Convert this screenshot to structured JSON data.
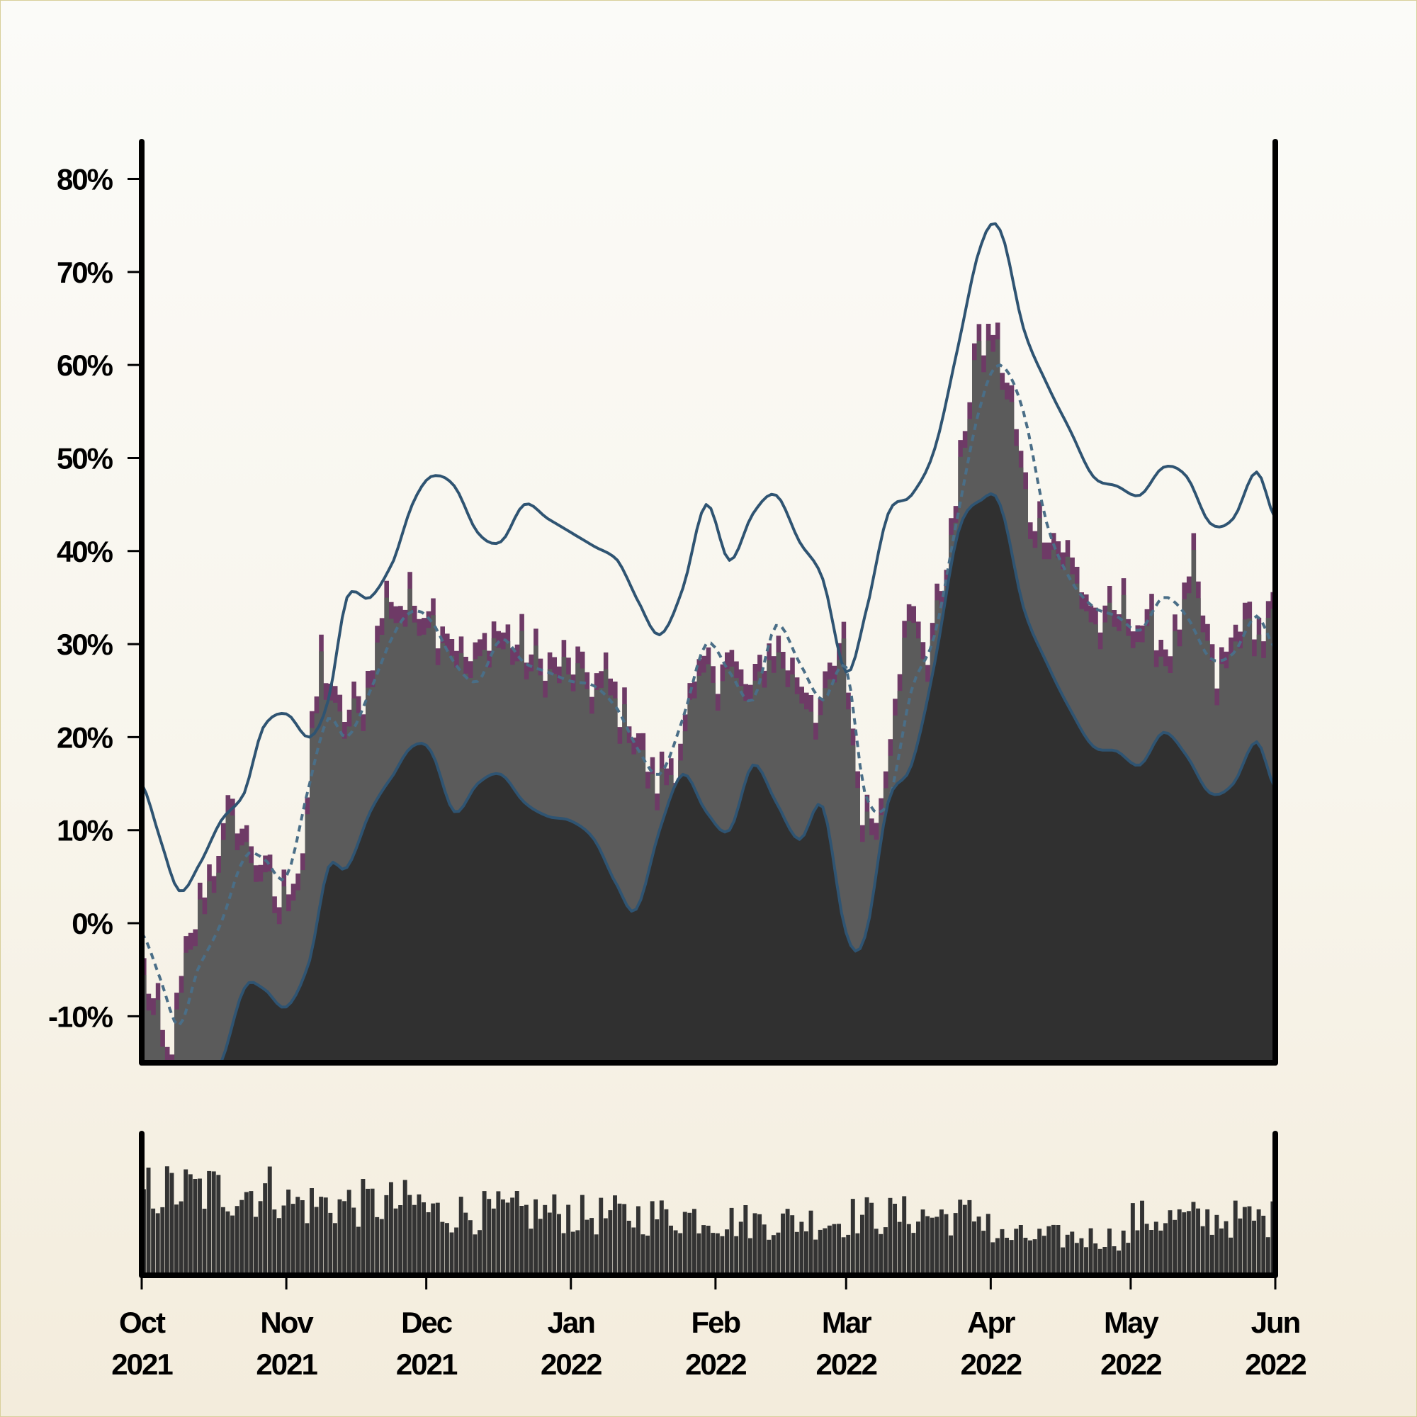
{
  "chart_data": {
    "type": "area",
    "x_tick_labels": [
      [
        "Oct",
        "2021"
      ],
      [
        "Nov",
        "2021"
      ],
      [
        "Dec",
        "2021"
      ],
      [
        "Jan",
        "2022"
      ],
      [
        "Feb",
        "2022"
      ],
      [
        "Mar",
        "2022"
      ],
      [
        "Apr",
        "2022"
      ],
      [
        "May",
        "2022"
      ],
      [
        "Jun",
        "2022"
      ]
    ],
    "x_ticks": [
      "2021-10-01",
      "2021-11-01",
      "2021-12-01",
      "2022-01-01",
      "2022-02-01",
      "2022-03-01",
      "2022-04-01",
      "2022-05-01",
      "2022-06-01"
    ],
    "xlim": [
      "2021-10-01",
      "2022-06-01"
    ],
    "ylim": [
      -15,
      84
    ],
    "y_ticks": [
      -10,
      0,
      10,
      20,
      30,
      40,
      50,
      60,
      70,
      80
    ],
    "y_tick_labels": [
      "-10%",
      "0%",
      "10%",
      "20%",
      "30%",
      "40%",
      "50%",
      "60%",
      "70%",
      "80%"
    ],
    "grid": false,
    "title": "",
    "xlabel": "",
    "ylabel": "",
    "colors": {
      "spike_fill": "#6e3a66",
      "band_fill": "#5b5b5b",
      "lower_fill": "#303030",
      "band_lines": "#2f5472",
      "mid_line": "#4a6e87",
      "volume_bars": "#333333",
      "axes": "#000000"
    },
    "series_daily": {
      "name": "",
      "x": [
        "2021-10-01",
        "2021-10-06",
        "2021-10-10",
        "2021-10-15",
        "2021-10-20",
        "2021-10-25",
        "2021-10-30",
        "2021-11-04",
        "2021-11-08",
        "2021-11-12",
        "2021-11-17",
        "2021-11-22",
        "2021-11-26",
        "2021-12-01",
        "2021-12-05",
        "2021-12-10",
        "2021-12-15",
        "2021-12-20",
        "2021-12-25",
        "2021-12-30",
        "2022-01-04",
        "2022-01-09",
        "2022-01-14",
        "2022-01-19",
        "2022-01-24",
        "2022-01-29",
        "2022-02-03",
        "2022-02-08",
        "2022-02-13",
        "2022-02-18",
        "2022-02-23",
        "2022-02-28",
        "2022-03-04",
        "2022-03-08",
        "2022-03-13",
        "2022-03-18",
        "2022-03-23",
        "2022-03-28",
        "2022-04-01",
        "2022-04-05",
        "2022-04-09",
        "2022-04-14",
        "2022-04-19",
        "2022-04-24",
        "2022-04-29",
        "2022-05-04",
        "2022-05-09",
        "2022-05-14",
        "2022-05-19",
        "2022-05-24",
        "2022-05-29",
        "2022-06-01"
      ],
      "values": [
        -5,
        -14,
        -4,
        6,
        12,
        8,
        2,
        8,
        30,
        22,
        24,
        36,
        34,
        35,
        32,
        28,
        32,
        30,
        28,
        28,
        27,
        26,
        22,
        15,
        20,
        28,
        29,
        25,
        31,
        27,
        24,
        30,
        12,
        13,
        34,
        30,
        42,
        62,
        64,
        56,
        44,
        42,
        38,
        32,
        34,
        32,
        30,
        38,
        26,
        33,
        32,
        36
      ]
    },
    "series_upper": {
      "name": "",
      "x": [
        "2021-10-01",
        "2021-10-05",
        "2021-10-09",
        "2021-10-13",
        "2021-10-18",
        "2021-10-23",
        "2021-10-27",
        "2021-11-01",
        "2021-11-06",
        "2021-11-10",
        "2021-11-14",
        "2021-11-19",
        "2021-11-24",
        "2021-11-28",
        "2021-12-02",
        "2021-12-07",
        "2021-12-12",
        "2021-12-17",
        "2021-12-22",
        "2021-12-27",
        "2022-01-01",
        "2022-01-06",
        "2022-01-11",
        "2022-01-15",
        "2022-01-20",
        "2022-01-25",
        "2022-01-30",
        "2022-02-04",
        "2022-02-09",
        "2022-02-14",
        "2022-02-19",
        "2022-02-24",
        "2022-03-01",
        "2022-03-05",
        "2022-03-10",
        "2022-03-15",
        "2022-03-20",
        "2022-03-25",
        "2022-03-30",
        "2022-04-03",
        "2022-04-08",
        "2022-04-13",
        "2022-04-18",
        "2022-04-23",
        "2022-04-28",
        "2022-05-03",
        "2022-05-08",
        "2022-05-13",
        "2022-05-18",
        "2022-05-23",
        "2022-05-28",
        "2022-06-01"
      ],
      "values": [
        15,
        9,
        3.5,
        6,
        11,
        14,
        21,
        22.5,
        20,
        24,
        35,
        35,
        39,
        45,
        48,
        47,
        42,
        41,
        45,
        43.5,
        42,
        40.5,
        39,
        35,
        31,
        36,
        45,
        39,
        44,
        46,
        41,
        37,
        27,
        33,
        44,
        46,
        51,
        62,
        73,
        74.5,
        64,
        58,
        53,
        48,
        47,
        46,
        49,
        48,
        43,
        43.5,
        48.5,
        43.5
      ]
    },
    "series_mid": {
      "name": "",
      "x": [
        "2021-10-01",
        "2021-10-05",
        "2021-10-09",
        "2021-10-13",
        "2021-10-18",
        "2021-10-23",
        "2021-10-27",
        "2021-11-01",
        "2021-11-06",
        "2021-11-10",
        "2021-11-14",
        "2021-11-19",
        "2021-11-24",
        "2021-11-28",
        "2021-12-02",
        "2021-12-07",
        "2021-12-12",
        "2021-12-17",
        "2021-12-22",
        "2021-12-27",
        "2022-01-01",
        "2022-01-06",
        "2022-01-11",
        "2022-01-15",
        "2022-01-20",
        "2022-01-25",
        "2022-01-30",
        "2022-02-04",
        "2022-02-09",
        "2022-02-14",
        "2022-02-19",
        "2022-02-24",
        "2022-03-01",
        "2022-03-05",
        "2022-03-10",
        "2022-03-15",
        "2022-03-20",
        "2022-03-25",
        "2022-03-30",
        "2022-04-03",
        "2022-04-08",
        "2022-04-13",
        "2022-04-18",
        "2022-04-23",
        "2022-04-28",
        "2022-05-03",
        "2022-05-08",
        "2022-05-13",
        "2022-05-18",
        "2022-05-23",
        "2022-05-28",
        "2022-06-01"
      ],
      "values": [
        -1,
        -6,
        -11,
        -5,
        0,
        7,
        7,
        5,
        15,
        22,
        20,
        25,
        31,
        33.5,
        32.5,
        28,
        26,
        30.5,
        28,
        27,
        26,
        25.5,
        23,
        19,
        16,
        22,
        30,
        27,
        24,
        32,
        28,
        24,
        27.5,
        14,
        13,
        25,
        31,
        44,
        56,
        60,
        55,
        43,
        37,
        34,
        33,
        31.5,
        35,
        33,
        28.5,
        29,
        33,
        29.5
      ]
    },
    "series_lower": {
      "name": "",
      "x": [
        "2021-10-01",
        "2021-10-05",
        "2021-10-09",
        "2021-10-13",
        "2021-10-18",
        "2021-10-23",
        "2021-10-27",
        "2021-11-01",
        "2021-11-06",
        "2021-11-10",
        "2021-11-14",
        "2021-11-19",
        "2021-11-24",
        "2021-11-28",
        "2021-12-02",
        "2021-12-07",
        "2021-12-12",
        "2021-12-17",
        "2021-12-22",
        "2021-12-27",
        "2022-01-01",
        "2022-01-06",
        "2022-01-11",
        "2022-01-15",
        "2022-01-20",
        "2022-01-25",
        "2022-01-30",
        "2022-02-04",
        "2022-02-09",
        "2022-02-14",
        "2022-02-19",
        "2022-02-24",
        "2022-03-01",
        "2022-03-05",
        "2022-03-10",
        "2022-03-15",
        "2022-03-20",
        "2022-03-25",
        "2022-03-30",
        "2022-04-03",
        "2022-04-08",
        "2022-04-13",
        "2022-04-18",
        "2022-04-23",
        "2022-04-28",
        "2022-05-03",
        "2022-05-08",
        "2022-05-13",
        "2022-05-18",
        "2022-05-23",
        "2022-05-28",
        "2022-06-01"
      ],
      "values": [
        -17,
        -22,
        -20,
        -18,
        -15,
        -7,
        -7,
        -9,
        -4,
        6,
        6,
        12,
        16,
        19,
        18.5,
        12,
        15,
        16,
        13,
        11.5,
        11,
        9,
        4,
        1.5,
        10,
        16,
        12,
        10,
        17,
        13,
        9,
        12.5,
        -1,
        -1.5,
        13,
        17,
        28,
        42,
        45.5,
        45,
        34,
        28,
        23,
        19,
        18.5,
        17,
        20.5,
        18,
        14,
        15,
        19.5,
        14.5
      ]
    },
    "volume_series": {
      "name": "",
      "relative_level_by_month": [
        {
          "month": "2021-10",
          "level": 0.78
        },
        {
          "month": "2021-11",
          "level": 0.66
        },
        {
          "month": "2021-12",
          "level": 0.58
        },
        {
          "month": "2022-01",
          "level": 0.55
        },
        {
          "month": "2022-02",
          "level": 0.5
        },
        {
          "month": "2022-03",
          "level": 0.55
        },
        {
          "month": "2022-04",
          "level": 0.35
        },
        {
          "month": "2022-05",
          "level": 0.52
        }
      ]
    }
  }
}
